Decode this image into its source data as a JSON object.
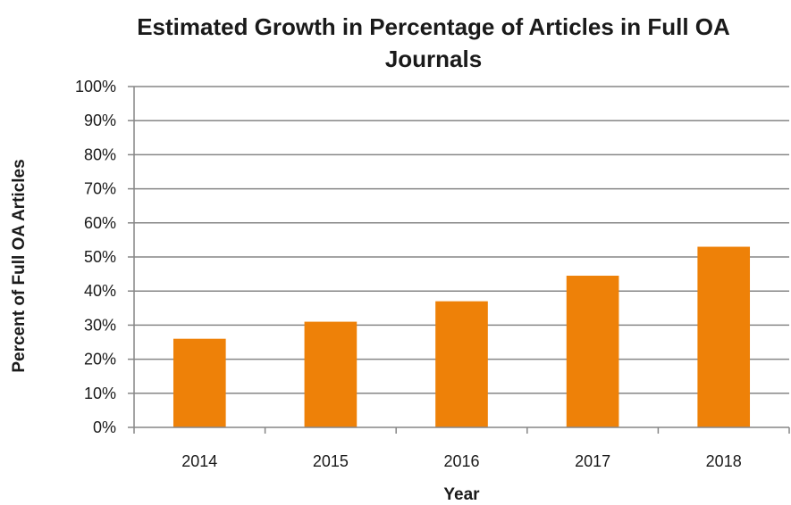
{
  "chart_data": {
    "type": "bar",
    "title": "Estimated Growth in Percentage of Articles in Full OA Journals",
    "xlabel": "Year",
    "ylabel": "Percent of Full OA Articles",
    "categories": [
      "2014",
      "2015",
      "2016",
      "2017",
      "2018"
    ],
    "values": [
      26,
      31,
      37,
      44.5,
      53
    ],
    "ylim": [
      0,
      100
    ],
    "yticks": [
      "0%",
      "10%",
      "20%",
      "30%",
      "40%",
      "50%",
      "60%",
      "70%",
      "80%",
      "90%",
      "100%"
    ],
    "grid": true,
    "legend": "none",
    "bar_color": "#EE8108",
    "grid_color": "#868686"
  }
}
